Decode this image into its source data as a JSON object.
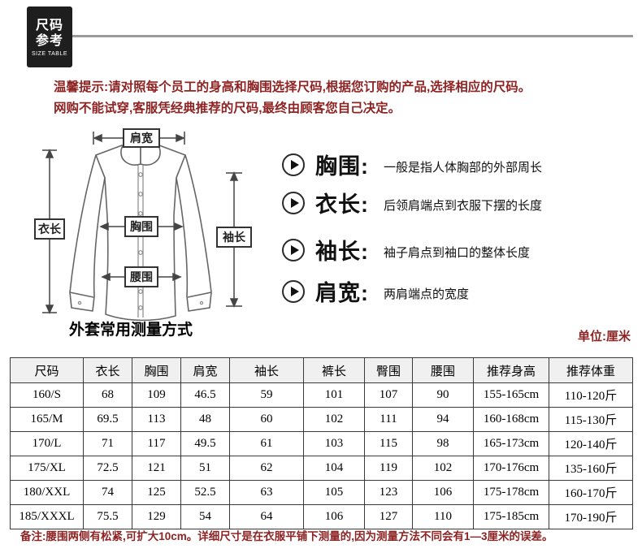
{
  "badge": {
    "line1": "尺码",
    "line2": "参考",
    "subtitle": "SIZE TABLE"
  },
  "tip": {
    "line1": "温馨提示:请对照每个员工的身高和胸围选择尺码,根据您订购的产品,选择相应的尺码。",
    "line2": "网购不能试穿,客服凭经典推荐的尺码,最终由顾客您自己决定。"
  },
  "diagram": {
    "caption": "外套常用测量方式",
    "labels": {
      "shoulder": "肩宽",
      "length": "衣长",
      "chest": "胸围",
      "waist": "腰围",
      "sleeve": "袖长"
    }
  },
  "definitions": [
    {
      "term": "胸围:",
      "desc": "一般是指人体胸部的外部周长"
    },
    {
      "term": "衣长:",
      "desc": "后领肩端点到衣服下摆的长度"
    },
    {
      "term": "袖长:",
      "desc": "袖子肩点到袖口的整体长度"
    },
    {
      "term": "肩宽:",
      "desc": "两肩端点的宽度"
    }
  ],
  "unit_note": "单位:厘米",
  "table": {
    "headers": [
      "尺码",
      "衣长",
      "胸围",
      "肩宽",
      "袖长",
      "裤长",
      "臀围",
      "腰围",
      "推荐身高",
      "推荐体重"
    ],
    "rows": [
      [
        "160/S",
        "68",
        "109",
        "46.5",
        "59",
        "101",
        "107",
        "90",
        "155-165cm",
        "110-120斤"
      ],
      [
        "165/M",
        "69.5",
        "113",
        "48",
        "60",
        "102",
        "111",
        "94",
        "160-168cm",
        "115-130斤"
      ],
      [
        "170/L",
        "71",
        "117",
        "49.5",
        "61",
        "103",
        "115",
        "98",
        "165-173cm",
        "120-140斤"
      ],
      [
        "175/XL",
        "72.5",
        "121",
        "51",
        "62",
        "104",
        "119",
        "102",
        "170-176cm",
        "135-160斤"
      ],
      [
        "180/XXL",
        "74",
        "125",
        "52.5",
        "63",
        "105",
        "123",
        "106",
        "175-178cm",
        "160-170斤"
      ],
      [
        "185/XXXL",
        "75.5",
        "129",
        "54",
        "64",
        "106",
        "127",
        "110",
        "175-185cm",
        "170-190斤"
      ]
    ]
  },
  "footnote": "备注:腰围两侧有松紧,可扩大10cm。详细尺寸是在衣服平铺下测量的,因为测量方法不同会有1—3厘米的误差。",
  "colors": {
    "accent_red": "#8e2323",
    "badge_bg": "#1e1e1e",
    "table_header_bg": "#f0f0f0",
    "table_border": "#3a3a3a",
    "divider_gray": "#9b9b9b"
  }
}
